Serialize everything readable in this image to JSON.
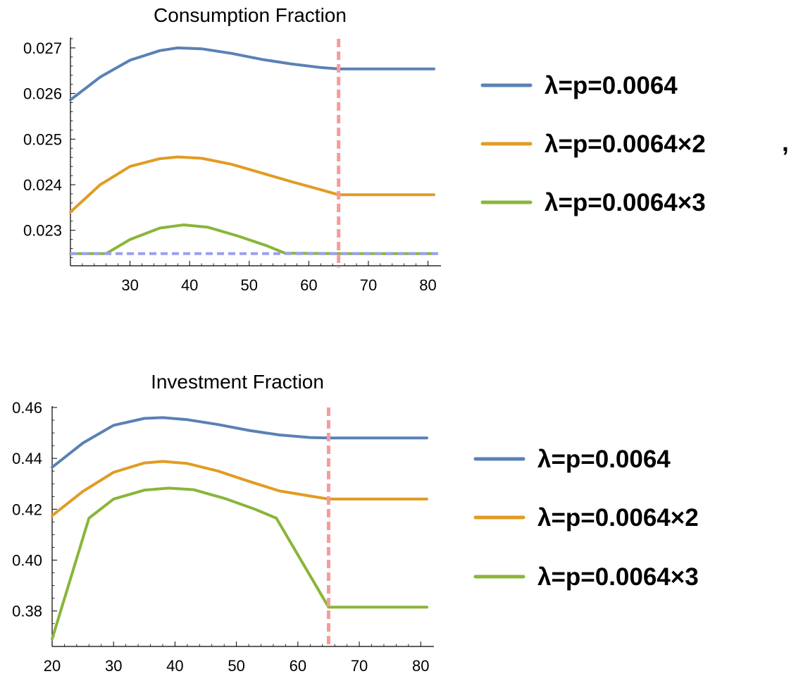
{
  "chart_data": [
    {
      "type": "line",
      "title": "Consumption Fraction",
      "xlabel": "",
      "ylabel": "",
      "xlim": [
        20,
        81
      ],
      "ylim": [
        0.0223,
        0.0272
      ],
      "xticks": [
        30,
        40,
        50,
        60,
        70,
        80
      ],
      "xtick_labels": [
        "30",
        "40",
        "50",
        "60",
        "70",
        "80"
      ],
      "yticks": [
        0.023,
        0.024,
        0.025,
        0.026,
        0.027
      ],
      "ytick_labels": [
        "0.023",
        "0.024",
        "0.025",
        "0.026",
        "0.027"
      ],
      "vline": {
        "x": 65,
        "color": "#f99a9a",
        "style": "dashed"
      },
      "hline": {
        "y": 0.02249,
        "color": "#9b9ff2",
        "style": "dashed"
      },
      "legend_position": "right",
      "legend_suffix": ",",
      "series": [
        {
          "name": "λ=p=0.0064",
          "color": "#5a81b5",
          "x": [
            20,
            25,
            30,
            35,
            38,
            42,
            47,
            52,
            57,
            62,
            65,
            81
          ],
          "y": [
            0.02586,
            0.02636,
            0.02673,
            0.02694,
            0.027,
            0.02698,
            0.02688,
            0.02675,
            0.02665,
            0.02657,
            0.02654,
            0.02654
          ]
        },
        {
          "name": "λ=p=0.0064×2",
          "color": "#e19c24",
          "x": [
            20,
            25,
            30,
            35,
            38,
            42,
            47,
            52,
            57,
            62,
            65,
            81
          ],
          "y": [
            0.0234,
            0.024,
            0.0244,
            0.02457,
            0.02461,
            0.02458,
            0.02445,
            0.02426,
            0.02407,
            0.02389,
            0.02378,
            0.02378
          ]
        },
        {
          "name": "λ=p=0.0064×3",
          "color": "#8ab53a",
          "x": [
            20,
            26,
            30,
            35,
            39,
            43,
            48,
            53,
            56,
            65,
            81
          ],
          "y": [
            0.02249,
            0.02249,
            0.0228,
            0.02305,
            0.02312,
            0.02307,
            0.02288,
            0.02266,
            0.0225,
            0.02249,
            0.02249
          ]
        }
      ]
    },
    {
      "type": "line",
      "title": "Investment Fraction",
      "xlabel": "",
      "ylabel": "",
      "xlim": [
        20,
        81
      ],
      "ylim": [
        0.368,
        0.46
      ],
      "xticks": [
        20,
        30,
        40,
        50,
        60,
        70,
        80
      ],
      "xtick_labels": [
        "20",
        "30",
        "40",
        "50",
        "60",
        "70",
        "80"
      ],
      "yticks": [
        0.38,
        0.4,
        0.42,
        0.44,
        0.46
      ],
      "ytick_labels": [
        "0.38",
        "0.40",
        "0.42",
        "0.44",
        "0.46"
      ],
      "vline": {
        "x": 65,
        "color": "#f99a9a",
        "style": "dashed"
      },
      "legend_position": "right",
      "series": [
        {
          "name": "λ=p=0.0064",
          "color": "#5a81b5",
          "x": [
            20,
            25,
            30,
            35,
            38,
            42,
            47,
            52,
            57,
            62,
            65,
            81
          ],
          "y": [
            0.4365,
            0.446,
            0.453,
            0.4557,
            0.456,
            0.4552,
            0.4533,
            0.451,
            0.4492,
            0.4482,
            0.448,
            0.448
          ]
        },
        {
          "name": "λ=p=0.0064×2",
          "color": "#e19c24",
          "x": [
            20,
            25,
            30,
            35,
            38,
            42,
            47,
            52,
            57,
            62,
            65,
            81
          ],
          "y": [
            0.4175,
            0.427,
            0.4345,
            0.4382,
            0.4388,
            0.438,
            0.435,
            0.431,
            0.4272,
            0.4252,
            0.424,
            0.424
          ]
        },
        {
          "name": "λ=p=0.0064×3",
          "color": "#8ab53a",
          "x": [
            20,
            26,
            30,
            35,
            39,
            43,
            48,
            53,
            56.5,
            65,
            81
          ],
          "y": [
            0.369,
            0.4165,
            0.424,
            0.4275,
            0.4283,
            0.4277,
            0.4243,
            0.42,
            0.4165,
            0.3815,
            0.3815
          ]
        }
      ]
    }
  ]
}
